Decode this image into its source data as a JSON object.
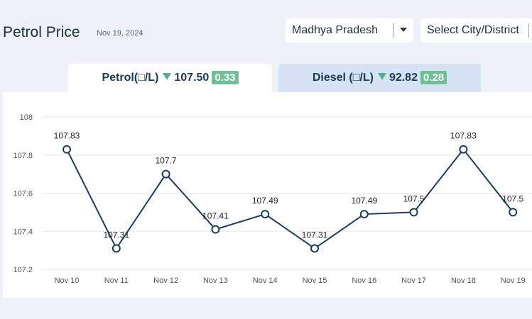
{
  "header": {
    "title": "Petrol Price",
    "date": "Nov 19, 2024"
  },
  "selectors": {
    "state": "Madhya Pradesh",
    "city": "Select City/District"
  },
  "tabs": {
    "petrol": {
      "label": "Petrol(□/L)",
      "price": "107.50",
      "change": "0.33",
      "trend": "down"
    },
    "diesel": {
      "label": "Diesel (□/L)",
      "price": "92.82",
      "change": "0.28",
      "trend": "down"
    }
  },
  "colors": {
    "line": "#1d3a5f",
    "trend_down": "#52b089",
    "badge": "#6fbf97"
  },
  "chart_data": {
    "type": "line",
    "categories": [
      "Nov 10",
      "Nov 11",
      "Nov 12",
      "Nov 13",
      "Nov 14",
      "Nov 15",
      "Nov 16",
      "Nov 17",
      "Nov 18",
      "Nov 19"
    ],
    "values": [
      107.83,
      107.31,
      107.7,
      107.41,
      107.49,
      107.31,
      107.49,
      107.5,
      107.83,
      107.5
    ],
    "value_labels": [
      "107.83",
      "107.31",
      "107.7",
      "107.41",
      "107.49",
      "107.31",
      "107.49",
      "107.5",
      "107.83",
      "107.5"
    ],
    "y_ticks": [
      "108",
      "107.8",
      "107.6",
      "107.4",
      "107.2"
    ],
    "ylim": [
      107.2,
      108
    ],
    "grid": true,
    "markers": "hollow-circle"
  }
}
